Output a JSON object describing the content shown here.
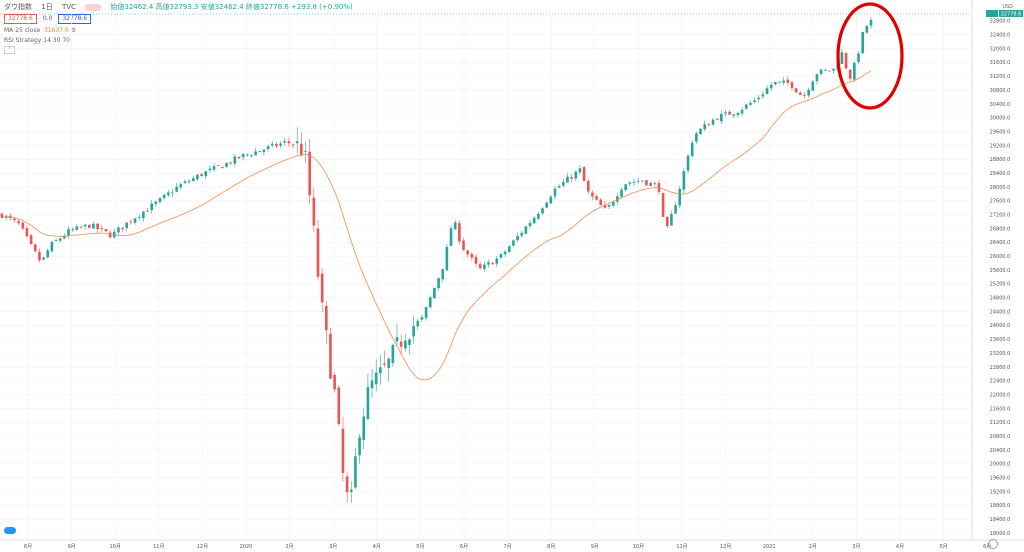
{
  "header": {
    "symbol": "ダウ指数",
    "interval": "1日",
    "source": "TVC",
    "ohlc_text": "始値32462.4 高値32793.3 安値32462.4 終値32778.6 +293.8 (+0.90%)",
    "sell_price": "32778.6",
    "spread": "0.0",
    "buy_price": "32778.6",
    "ma_label": "MA 25 close",
    "ma_value": "31637.6",
    "rsi_label": "RSI Strategy 14 30 70",
    "currency": "USD"
  },
  "colors": {
    "up": "#26a69a",
    "down": "#ef5350",
    "ma": "#f28e51",
    "annotation": "#e00000"
  },
  "chart_data": {
    "type": "candlestick",
    "x_tick_labels": [
      "8月",
      "9月",
      "10月",
      "11月",
      "12月",
      "2020",
      "2月",
      "3月",
      "4月",
      "5月",
      "6月",
      "7月",
      "8月",
      "9月",
      "10月",
      "11月",
      "12月",
      "2021",
      "2月",
      "3月",
      "4月",
      "5月",
      "6月"
    ],
    "y_tick_labels": [
      "18000.0",
      "18400.0",
      "18800.0",
      "19200.0",
      "19600.0",
      "20000.0",
      "20400.0",
      "20800.0",
      "21200.0",
      "21600.0",
      "22000.0",
      "22400.0",
      "22800.0",
      "23200.0",
      "23600.0",
      "24000.0",
      "24400.0",
      "24800.0",
      "25200.0",
      "25600.0",
      "26000.0",
      "26400.0",
      "26800.0",
      "27200.0",
      "27600.0",
      "28000.0",
      "28400.0",
      "28800.0",
      "29200.0",
      "29600.0",
      "30000.0",
      "30400.0",
      "30800.0",
      "31200.0",
      "31600.0",
      "32000.0",
      "32400.0",
      "32800.0"
    ],
    "ylim": [
      17800,
      33000
    ],
    "last_price": "32778.6",
    "annotation": "red circle around the latest highs",
    "price_path_checkpoints": [
      {
        "month": "8月",
        "price": 26400
      },
      {
        "month": "9月",
        "price": 26500
      },
      {
        "month": "10月",
        "price": 26800
      },
      {
        "month": "11月",
        "price": 27700
      },
      {
        "month": "12月",
        "price": 28100
      },
      {
        "month": "2020",
        "price": 28600
      },
      {
        "month": "2月",
        "price": 29200
      },
      {
        "month": "3月",
        "price": 23500
      },
      {
        "month": "4月",
        "price": 21900
      },
      {
        "month": "5月",
        "price": 24100
      },
      {
        "month": "6月",
        "price": 26300
      },
      {
        "month": "7月",
        "price": 26000
      },
      {
        "month": "8月",
        "price": 27300
      },
      {
        "month": "9月",
        "price": 28200
      },
      {
        "month": "10月",
        "price": 27800
      },
      {
        "month": "11月",
        "price": 28000
      },
      {
        "month": "12月",
        "price": 29900
      },
      {
        "month": "2021",
        "price": 30600
      },
      {
        "month": "2月",
        "price": 31000
      },
      {
        "month": "3月",
        "price": 31600
      },
      {
        "month": "4月",
        "price": 32778.6
      }
    ]
  }
}
